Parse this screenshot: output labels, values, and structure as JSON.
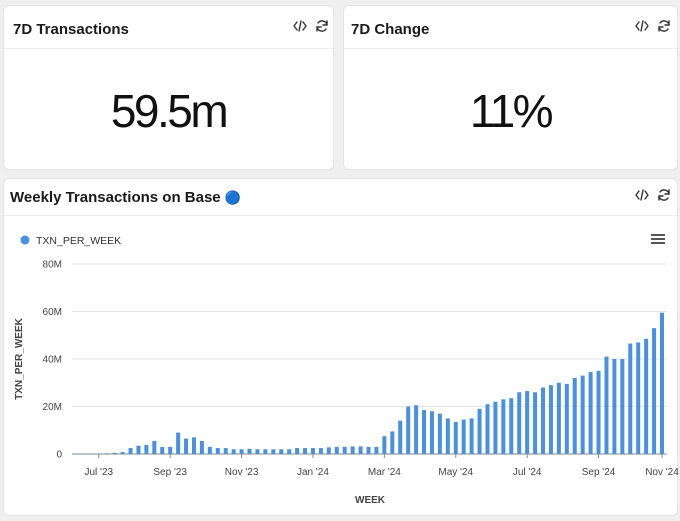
{
  "cards": {
    "transactions": {
      "title": "7D Transactions",
      "value": "59.5m"
    },
    "change": {
      "title": "7D Change",
      "value": "11%"
    },
    "weekly": {
      "title": "Weekly Transactions on Base",
      "title_emoji": "🔵"
    }
  },
  "icons": {
    "code": "code-icon",
    "refresh": "refresh-icon",
    "menu": "hamburger-menu-icon"
  },
  "colors": {
    "bar": "#4a90e2",
    "legend_dot": "#4a90e2",
    "accent": "#0052ff"
  },
  "chart_data": {
    "type": "bar",
    "legend": "TXN_PER_WEEK",
    "xlabel": "WEEK",
    "ylabel": "TXN_PER_WEEK",
    "ylim": [
      0,
      80
    ],
    "y_ticks": [
      "0",
      "20M",
      "40M",
      "60M",
      "80M"
    ],
    "x_ticks": [
      "Jul '23",
      "Sep '23",
      "Nov '23",
      "Jan '24",
      "Mar '24",
      "May '24",
      "Jul '24",
      "Sep '24",
      "Nov '24"
    ],
    "series": [
      {
        "name": "TXN_PER_WEEK",
        "unit": "M",
        "values": [
          0.1,
          0.1,
          0.1,
          0.2,
          0.3,
          0.5,
          0.8,
          2.5,
          3.5,
          3.8,
          5.5,
          3.0,
          3.0,
          9.0,
          6.5,
          7.0,
          5.5,
          3.0,
          2.5,
          2.5,
          2.0,
          2.0,
          2.2,
          2.0,
          2.0,
          2.0,
          2.0,
          2.0,
          2.5,
          2.5,
          2.5,
          2.5,
          2.8,
          3.0,
          3.0,
          3.2,
          3.2,
          3.0,
          3.0,
          7.5,
          9.5,
          14.0,
          20.0,
          20.5,
          18.5,
          18.0,
          17.0,
          15.0,
          13.5,
          14.5,
          15.0,
          19.0,
          21.0,
          22.0,
          23.0,
          23.5,
          26.0,
          26.5,
          26.0,
          28.0,
          29.0,
          30.0,
          29.5,
          32.0,
          33.0,
          34.5,
          35.0,
          41.0,
          40.0,
          40.0,
          46.5,
          47.0,
          48.5,
          53.0,
          59.5
        ]
      }
    ]
  }
}
